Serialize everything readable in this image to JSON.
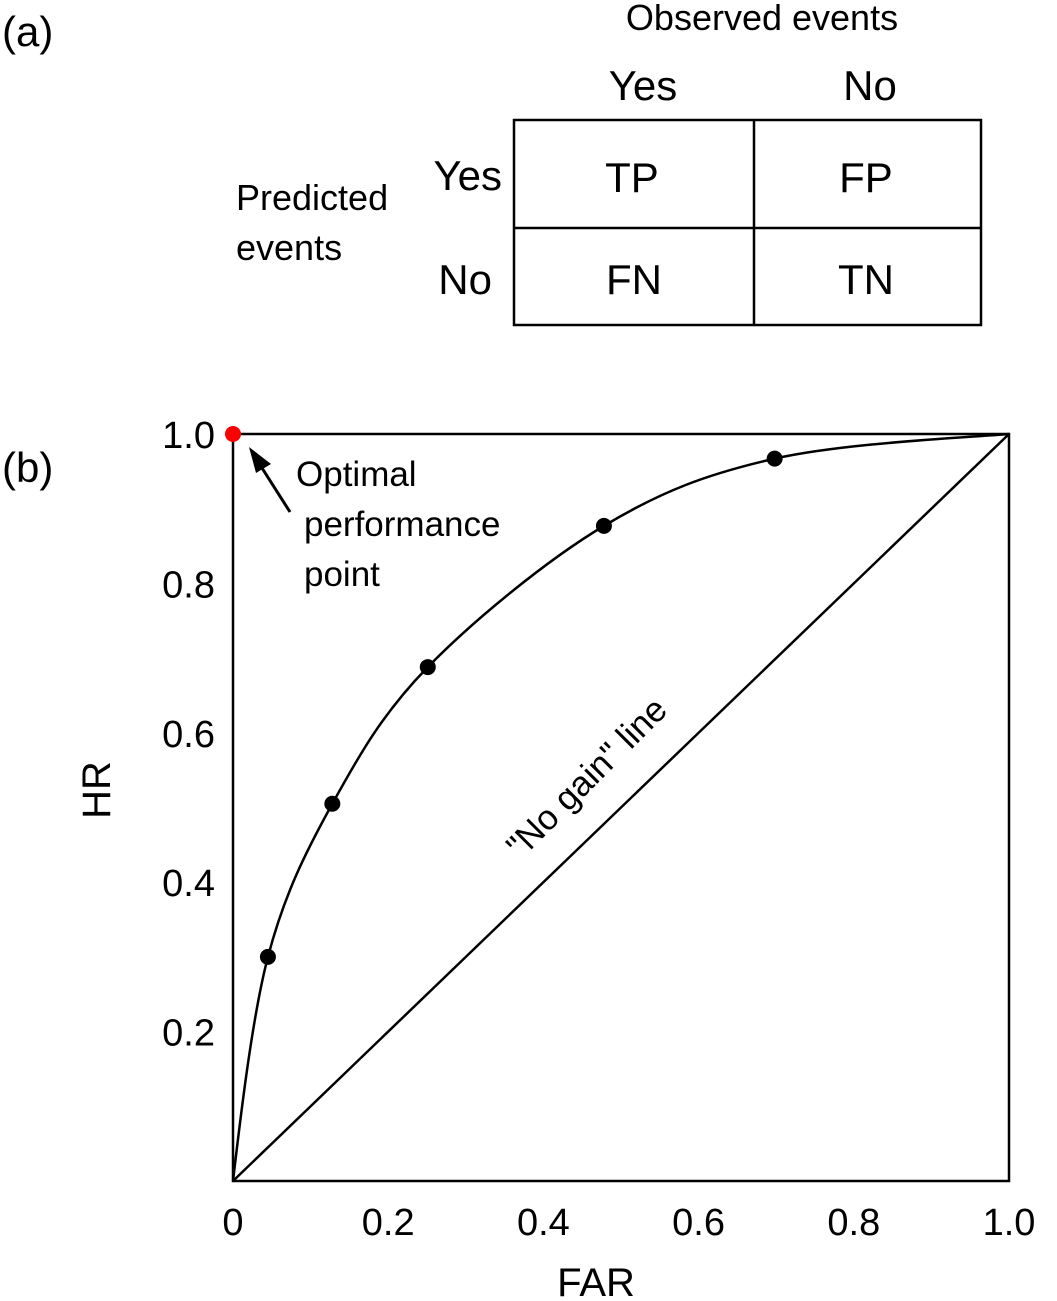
{
  "panel_a": {
    "label": "(a)",
    "column_header": "Observed events",
    "col_yes": "Yes",
    "col_no": "No",
    "row_header_line1": "Predicted",
    "row_header_line2": "events",
    "row_yes": "Yes",
    "row_no": "No",
    "cells": {
      "tp": "TP",
      "fp": "FP",
      "fn": "FN",
      "tn": "TN"
    }
  },
  "panel_b": {
    "label": "(b)",
    "optimal_line1": "Optimal",
    "optimal_line2": "performance",
    "optimal_line3": "point",
    "no_gain_label": "\"No gain\" line"
  },
  "chart_data": {
    "type": "line",
    "title": "",
    "xlabel": "FAR",
    "ylabel": "HR",
    "xlim": [
      0,
      1.0
    ],
    "ylim": [
      0,
      1.0
    ],
    "x_tick_labels": [
      "0",
      "0.2",
      "0.4",
      "0.6",
      "0.8",
      "1.0"
    ],
    "y_tick_labels": [
      "0.2",
      "0.4",
      "0.6",
      "0.8",
      "1.0"
    ],
    "grid": false,
    "series": [
      {
        "points": [
          {
            "x": 0.045,
            "y": 0.3
          },
          {
            "x": 0.128,
            "y": 0.505
          },
          {
            "x": 0.251,
            "y": 0.688
          },
          {
            "x": 0.478,
            "y": 0.877
          },
          {
            "x": 0.698,
            "y": 0.967
          }
        ]
      }
    ],
    "no_gain_line": {
      "x": [
        0,
        1
      ],
      "y": [
        0,
        1
      ]
    },
    "optimal_point": {
      "x": 0,
      "y": 1.0,
      "color": "#ff0000"
    },
    "point_color": "#000000",
    "line_color": "#000000"
  }
}
